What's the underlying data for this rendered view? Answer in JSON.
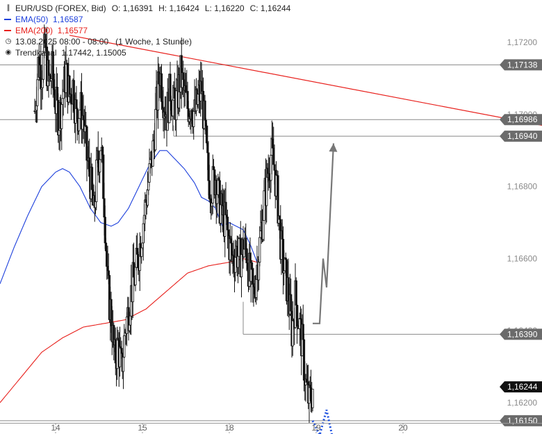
{
  "header": {
    "symbol_line": "EUR/USD (FOREX, Bid)",
    "ohlc": [
      {
        "k": "O:",
        "v": "1,16391"
      },
      {
        "k": "H:",
        "v": "1,16424"
      },
      {
        "k": "L:",
        "v": "1,16220"
      },
      {
        "k": "C:",
        "v": "1,16244"
      }
    ],
    "ema50_label": "EMA(50)",
    "ema50_value": "1,16587",
    "ema200_label": "EMA(200)",
    "ema200_value": "1,16577",
    "date_line": "13.08.2025 08:00 - 08:00",
    "period_line": "(1 Woche, 1 Stunde)",
    "trendkanal_label": "Trendkanal",
    "trendkanal_values": "1.17442, 1.15005"
  },
  "colors": {
    "ema50": "#1c3fdc",
    "ema200": "#e8201c",
    "candle": "#111111",
    "level": "#888888",
    "tag_grey": "#6b6b6b",
    "tag_dark": "#111111",
    "trend": "#e8201c",
    "proj_grey": "#777777",
    "proj_blue": "#1a4ee0"
  },
  "chart_data": {
    "type": "candlestick",
    "instrument": "EUR/USD",
    "timeframe": "1 Stunde",
    "ylim": [
      1.16142,
      1.17318
    ],
    "y_ticks": [
      {
        "v": 1.172,
        "label": "1,17200"
      },
      {
        "v": 1.17,
        "label": "1,17000"
      },
      {
        "v": 1.168,
        "label": "1,16800"
      },
      {
        "v": 1.166,
        "label": "1,16600"
      },
      {
        "v": 1.164,
        "label": "1,16400"
      },
      {
        "v": 1.162,
        "label": "1,16200"
      }
    ],
    "x_ticks": [
      {
        "t": 6,
        "label": "14"
      },
      {
        "t": 31,
        "label": "15"
      },
      {
        "t": 56,
        "label": "18"
      },
      {
        "t": 81,
        "label": "19"
      },
      {
        "t": 106,
        "label": "20"
      }
    ],
    "x_range": [
      -10,
      146
    ],
    "candle_anchors": [
      [
        0,
        1.1701
      ],
      [
        1,
        1.1714
      ],
      [
        2,
        1.1712
      ],
      [
        3,
        1.1718
      ],
      [
        4,
        1.1708
      ],
      [
        5,
        1.1712
      ],
      [
        6,
        1.1703
      ],
      [
        7,
        1.1699
      ],
      [
        8,
        1.1705
      ],
      [
        9,
        1.1712
      ],
      [
        10,
        1.1705
      ],
      [
        11,
        1.1708
      ],
      [
        12,
        1.1699
      ],
      [
        13,
        1.1702
      ],
      [
        14,
        1.1699
      ],
      [
        15,
        1.1688
      ],
      [
        16,
        1.1682
      ],
      [
        17,
        1.1672
      ],
      [
        18,
        1.1686
      ],
      [
        19,
        1.1692
      ],
      [
        20,
        1.1676
      ],
      [
        21,
        1.1652
      ],
      [
        22,
        1.1644
      ],
      [
        23,
        1.1632
      ],
      [
        24,
        1.1636
      ],
      [
        25,
        1.1629
      ],
      [
        26,
        1.164
      ],
      [
        27,
        1.1646
      ],
      [
        28,
        1.1652
      ],
      [
        29,
        1.1656
      ],
      [
        30,
        1.1662
      ],
      [
        31,
        1.1669
      ],
      [
        32,
        1.1676
      ],
      [
        33,
        1.1683
      ],
      [
        34,
        1.169
      ],
      [
        35,
        1.1702
      ],
      [
        36,
        1.1712
      ],
      [
        37,
        1.1705
      ],
      [
        38,
        1.17
      ],
      [
        39,
        1.1707
      ],
      [
        40,
        1.1702
      ],
      [
        41,
        1.1704
      ],
      [
        42,
        1.1711
      ],
      [
        43,
        1.1706
      ],
      [
        44,
        1.1702
      ],
      [
        45,
        1.1703
      ],
      [
        46,
        1.17
      ],
      [
        47,
        1.1704
      ],
      [
        48,
        1.1707
      ],
      [
        49,
        1.1695
      ],
      [
        50,
        1.1682
      ],
      [
        51,
        1.168
      ],
      [
        52,
        1.1683
      ],
      [
        53,
        1.1676
      ],
      [
        54,
        1.1672
      ],
      [
        55,
        1.167
      ],
      [
        56,
        1.1664
      ],
      [
        57,
        1.166
      ],
      [
        58,
        1.1662
      ],
      [
        59,
        1.166
      ],
      [
        60,
        1.1663
      ],
      [
        61,
        1.1662
      ],
      [
        62,
        1.1654
      ],
      [
        63,
        1.165
      ],
      [
        64,
        1.1658
      ],
      [
        65,
        1.1666
      ],
      [
        66,
        1.1676
      ],
      [
        67,
        1.1683
      ],
      [
        68,
        1.1689
      ],
      [
        69,
        1.1685
      ],
      [
        70,
        1.1675
      ],
      [
        71,
        1.1662
      ],
      [
        72,
        1.1656
      ],
      [
        73,
        1.165
      ],
      [
        74,
        1.164
      ],
      [
        75,
        1.1649
      ],
      [
        76,
        1.1643
      ],
      [
        77,
        1.1636
      ],
      [
        78,
        1.1625
      ],
      [
        79,
        1.162
      ],
      [
        80,
        1.1624
      ]
    ],
    "ema50_anchors": [
      [
        -10,
        1.1653
      ],
      [
        -6,
        1.1663
      ],
      [
        -2,
        1.1672
      ],
      [
        2,
        1.168
      ],
      [
        6,
        1.1684
      ],
      [
        8,
        1.1685
      ],
      [
        10,
        1.1684
      ],
      [
        13,
        1.168
      ],
      [
        16,
        1.1674
      ],
      [
        19,
        1.167
      ],
      [
        22,
        1.1669
      ],
      [
        24,
        1.167
      ],
      [
        27,
        1.1674
      ],
      [
        30,
        1.168
      ],
      [
        33,
        1.1686
      ],
      [
        36,
        1.169
      ],
      [
        38,
        1.169
      ],
      [
        40,
        1.1688
      ],
      [
        43,
        1.1685
      ],
      [
        46,
        1.1681
      ],
      [
        48,
        1.1677
      ],
      [
        50,
        1.1676
      ],
      [
        52,
        1.1674
      ],
      [
        54,
        1.1669
      ],
      [
        56,
        1.167
      ],
      [
        58,
        1.1669
      ],
      [
        60,
        1.1668
      ],
      [
        62,
        1.1664
      ],
      [
        64,
        1.1659
      ]
    ],
    "ema200_anchors": [
      [
        -10,
        1.162
      ],
      [
        -4,
        1.1627
      ],
      [
        2,
        1.1634
      ],
      [
        8,
        1.1638
      ],
      [
        14,
        1.1641
      ],
      [
        20,
        1.1642
      ],
      [
        26,
        1.1643
      ],
      [
        32,
        1.1646
      ],
      [
        38,
        1.1651
      ],
      [
        44,
        1.1656
      ],
      [
        50,
        1.1658
      ],
      [
        56,
        1.1659
      ],
      [
        60,
        1.166
      ],
      [
        64,
        1.1659
      ]
    ],
    "levels": [
      {
        "value": 1.17138,
        "label": "1,17138",
        "style": "grey",
        "from_t": -10
      },
      {
        "value": 1.16986,
        "label": "1,16986",
        "style": "grey",
        "from_t": -10
      },
      {
        "value": 1.1694,
        "label": "1,16940",
        "style": "grey",
        "from_t": 40
      },
      {
        "value": 1.1639,
        "label": "1,16390",
        "style": "grey",
        "from_t": 60
      },
      {
        "value": 1.16244,
        "label": "1,16244",
        "style": "dark",
        "from_t": null
      },
      {
        "value": 1.1615,
        "label": "1,16150",
        "style": "grey",
        "from_t": -10
      }
    ],
    "trendline": {
      "from": [
        10,
        1.1722
      ],
      "to": [
        146,
        1.1697
      ]
    },
    "projection_up": {
      "points": [
        [
          80,
          1.1642
        ],
        [
          82,
          1.1642
        ],
        [
          83,
          1.166
        ],
        [
          84,
          1.1652
        ],
        [
          86,
          1.1692
        ]
      ]
    },
    "projection_down": {
      "points": [
        [
          80,
          1.1615
        ],
        [
          82,
          1.1611
        ],
        [
          84,
          1.1618
        ],
        [
          86,
          1.1609
        ]
      ]
    }
  }
}
